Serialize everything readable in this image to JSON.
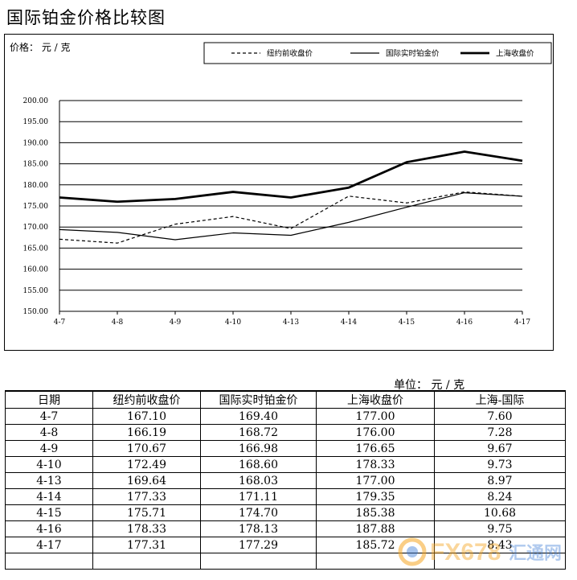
{
  "title": "国际铂金价格比较图",
  "chart_data": {
    "type": "line",
    "ylabel": "价格： 元 / 克",
    "ylim": [
      150,
      200
    ],
    "yticks": [
      "150.00",
      "155.00",
      "160.00",
      "165.00",
      "170.00",
      "175.00",
      "180.00",
      "185.00",
      "190.00",
      "195.00",
      "200.00"
    ],
    "categories": [
      "4-7",
      "4-8",
      "4-9",
      "4-10",
      "4-13",
      "4-14",
      "4-15",
      "4-16",
      "4-17"
    ],
    "grid": true,
    "legend_position": "top-right",
    "series": [
      {
        "name": "纽约前收盘价",
        "style": "dashed",
        "values": [
          167.1,
          166.19,
          170.67,
          172.49,
          169.64,
          177.33,
          175.71,
          178.33,
          177.31
        ]
      },
      {
        "name": "国际实时铂金价",
        "style": "thin",
        "values": [
          169.4,
          168.72,
          166.98,
          168.6,
          168.03,
          171.11,
          174.7,
          178.13,
          177.29
        ]
      },
      {
        "name": "上海收盘价",
        "style": "thick",
        "values": [
          177.0,
          176.0,
          176.65,
          178.33,
          177.0,
          179.35,
          185.38,
          187.88,
          185.72
        ]
      }
    ]
  },
  "table": {
    "unit": "单位：  元 / 克",
    "headers": [
      "日期",
      "纽约前收盘价",
      "国际实时铂金价",
      "上海收盘价",
      "上海-国际"
    ],
    "rows": [
      [
        "4-7",
        "167.10",
        "169.40",
        "177.00",
        "7.60"
      ],
      [
        "4-8",
        "166.19",
        "168.72",
        "176.00",
        "7.28"
      ],
      [
        "4-9",
        "170.67",
        "166.98",
        "176.65",
        "9.67"
      ],
      [
        "4-10",
        "172.49",
        "168.60",
        "178.33",
        "9.73"
      ],
      [
        "4-13",
        "169.64",
        "168.03",
        "177.00",
        "8.97"
      ],
      [
        "4-14",
        "177.33",
        "171.11",
        "179.35",
        "8.24"
      ],
      [
        "4-15",
        "175.71",
        "174.70",
        "185.38",
        "10.68"
      ],
      [
        "4-16",
        "178.33",
        "178.13",
        "187.88",
        "9.75"
      ],
      [
        "4-17",
        "177.31",
        "177.29",
        "185.72",
        "8.43"
      ],
      [
        "",
        "",
        "",
        "",
        ""
      ]
    ]
  },
  "watermark": {
    "text": "FX678",
    "subtext": "汇通网",
    "colors": {
      "orange": "#f5a623",
      "blue": "#3a7bd5"
    }
  }
}
